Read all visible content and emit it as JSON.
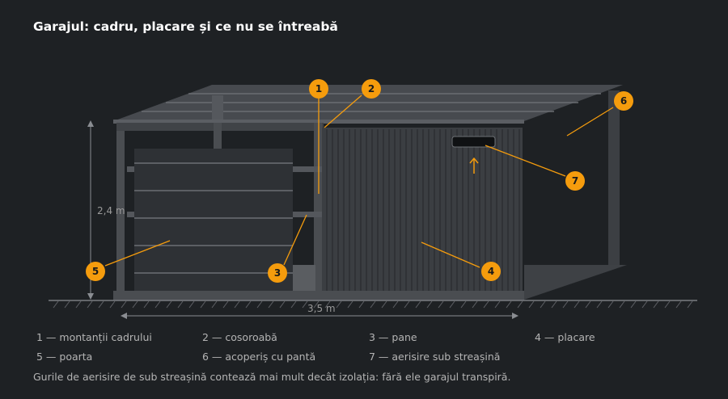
{
  "title": "Garajul: cadru, placare și ce nu se întreabă",
  "dimensions": {
    "height": "2,4 m",
    "width": "3,5 m"
  },
  "callouts": [
    "1",
    "2",
    "3",
    "4",
    "5",
    "6",
    "7"
  ],
  "legend": [
    "1 — montanții cadrului",
    "2 — cosoroabă",
    "3 — pane",
    "4 — placare",
    "5 — poarta",
    "6 — acoperiș cu pantă",
    "7 — aerisire sub streașină"
  ],
  "footnote": "Gurile de aerisire de sub streașină contează mai mult decât izolația: fără ele garajul transpiră.",
  "colors": {
    "accent": "#f59c0d",
    "background": "#1e2124"
  }
}
